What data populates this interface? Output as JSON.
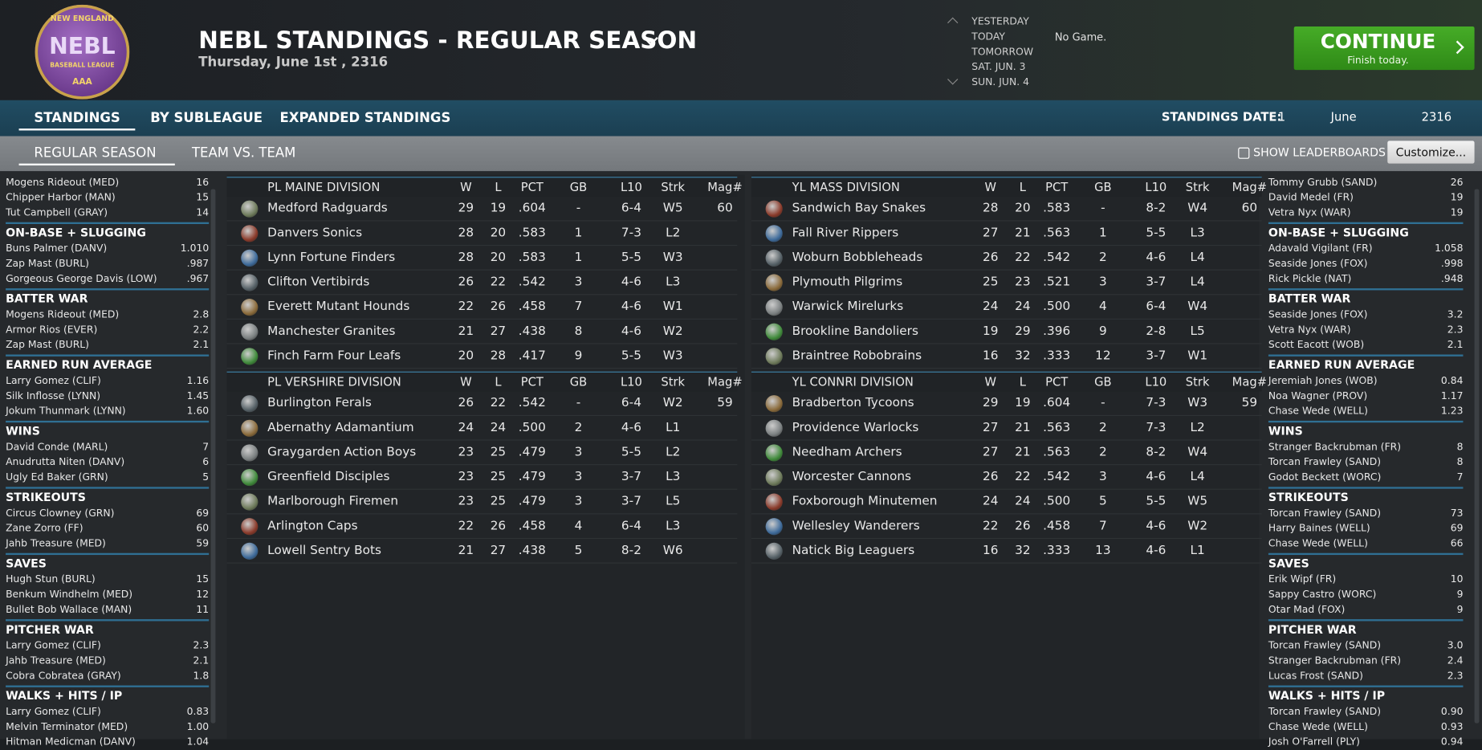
{
  "header": {
    "logo": {
      "top": "NEW ENGLAND",
      "main": "NEBL",
      "sub": "BASEBALL LEAGUE",
      "bottom": "AAA"
    },
    "title": "NEBL STANDINGS - REGULAR SEASON",
    "date": "Thursday, June 1st , 2316",
    "days": [
      "YESTERDAY",
      "TODAY",
      "TOMORROW",
      "SAT. JUN. 3",
      "SUN. JUN. 4"
    ],
    "status": "No Game.",
    "continue": {
      "label": "CONTINUE",
      "note": "Finish today."
    }
  },
  "tabs": [
    "STANDINGS",
    "BY SUBLEAGUE",
    "EXPANDED STANDINGS"
  ],
  "standings_date": {
    "label": "STANDINGS DATE:",
    "day": "1",
    "month": "June",
    "year": "2316"
  },
  "subtabs": [
    "REGULAR SEASON",
    "TEAM VS. TEAM"
  ],
  "show_leaderboards": "SHOW LEADERBOARDS",
  "customize": "Customize...",
  "left_leaders": {
    "partial": [
      [
        "Mogens Rideout (MED)",
        "16"
      ],
      [
        "Chipper Harbor (MAN)",
        "15"
      ],
      [
        "Tut Campbell (GRAY)",
        "14"
      ]
    ],
    "sections": [
      {
        "title": "ON-BASE + SLUGGING",
        "rows": [
          [
            "Buns Palmer (DANV)",
            "1.010"
          ],
          [
            "Zap Mast (BURL)",
            ".987"
          ],
          [
            "Gorgeous George Davis (LOW)",
            ".967"
          ]
        ]
      },
      {
        "title": "BATTER WAR",
        "rows": [
          [
            "Mogens Rideout (MED)",
            "2.8"
          ],
          [
            "Armor Rios (EVER)",
            "2.2"
          ],
          [
            "Zap Mast (BURL)",
            "2.1"
          ]
        ]
      },
      {
        "title": "EARNED RUN AVERAGE",
        "rows": [
          [
            "Larry Gomez (CLIF)",
            "1.16"
          ],
          [
            "Silk Inflosse (LYNN)",
            "1.45"
          ],
          [
            "Jokum Thunmark (LYNN)",
            "1.60"
          ]
        ]
      },
      {
        "title": "WINS",
        "rows": [
          [
            "David Conde (MARL)",
            "7"
          ],
          [
            "Anudrutta Niten (DANV)",
            "6"
          ],
          [
            "Ugly Ed Baker (GRN)",
            "5"
          ]
        ]
      },
      {
        "title": "STRIKEOUTS",
        "rows": [
          [
            "Circus Clowney (GRN)",
            "69"
          ],
          [
            "Zane Zorro (FF)",
            "60"
          ],
          [
            "Jahb Treasure (MED)",
            "59"
          ]
        ]
      },
      {
        "title": "SAVES",
        "rows": [
          [
            "Hugh Stun (BURL)",
            "15"
          ],
          [
            "Benkum Windhelm (MED)",
            "12"
          ],
          [
            "Bullet Bob Wallace (MAN)",
            "11"
          ]
        ]
      },
      {
        "title": "PITCHER WAR",
        "rows": [
          [
            "Larry Gomez (CLIF)",
            "2.3"
          ],
          [
            "Jahb Treasure (MED)",
            "2.1"
          ],
          [
            "Cobra Cobratea (GRAY)",
            "1.8"
          ]
        ]
      },
      {
        "title": "WALKS + HITS / IP",
        "rows": [
          [
            "Larry Gomez (CLIF)",
            "0.83"
          ],
          [
            "Melvin Terminator (MED)",
            "1.00"
          ],
          [
            "Hitman Medicman (DANV)",
            "1.04"
          ]
        ]
      }
    ]
  },
  "right_leaders": {
    "partial": [
      [
        "Tommy Grubb (SAND)",
        "26"
      ],
      [
        "David Medel (FR)",
        "19"
      ],
      [
        "Vetra Nyx (WAR)",
        "19"
      ]
    ],
    "sections": [
      {
        "title": "ON-BASE + SLUGGING",
        "rows": [
          [
            "Adavald Vigilant (FR)",
            "1.058"
          ],
          [
            "Seaside Jones (FOX)",
            ".998"
          ],
          [
            "Rick Pickle (NAT)",
            ".948"
          ]
        ]
      },
      {
        "title": "BATTER WAR",
        "rows": [
          [
            "Seaside Jones (FOX)",
            "3.2"
          ],
          [
            "Vetra Nyx (WAR)",
            "2.3"
          ],
          [
            "Scott Eacott (WOB)",
            "2.1"
          ]
        ]
      },
      {
        "title": "EARNED RUN AVERAGE",
        "rows": [
          [
            "Jeremiah Jones (WOB)",
            "0.84"
          ],
          [
            "Noa Wagner (PROV)",
            "1.17"
          ],
          [
            "Chase Wede (WELL)",
            "1.23"
          ]
        ]
      },
      {
        "title": "WINS",
        "rows": [
          [
            "Stranger Backrubman (FR)",
            "8"
          ],
          [
            "Torcan Frawley (SAND)",
            "8"
          ],
          [
            "Godot Beckett (WORC)",
            "7"
          ]
        ]
      },
      {
        "title": "STRIKEOUTS",
        "rows": [
          [
            "Torcan Frawley (SAND)",
            "73"
          ],
          [
            "Harry Baines (WELL)",
            "69"
          ],
          [
            "Chase Wede (WELL)",
            "66"
          ]
        ]
      },
      {
        "title": "SAVES",
        "rows": [
          [
            "Erik Wipf (FR)",
            "10"
          ],
          [
            "Sappy Castro (WORC)",
            "9"
          ],
          [
            "Otar Mad (FOX)",
            "9"
          ]
        ]
      },
      {
        "title": "PITCHER WAR",
        "rows": [
          [
            "Torcan Frawley (SAND)",
            "3.0"
          ],
          [
            "Stranger Backrubman (FR)",
            "2.4"
          ],
          [
            "Lucas Frost (SAND)",
            "2.3"
          ]
        ]
      },
      {
        "title": "WALKS + HITS / IP",
        "rows": [
          [
            "Torcan Frawley (SAND)",
            "0.90"
          ],
          [
            "Chase Wede (WELL)",
            "0.93"
          ],
          [
            "Josh O'Farrell (PLY)",
            "0.94"
          ]
        ]
      }
    ]
  },
  "standings": [
    [
      {
        "name": "PL MAINE DIVISION",
        "columns": [
          "W",
          "L",
          "PCT",
          "GB",
          "L10",
          "Strk",
          "Mag#"
        ],
        "teams": [
          {
            "name": "Medford Radguards",
            "stats": [
              "29",
              "19",
              ".604",
              "-",
              "6-4",
              "W5",
              "60"
            ]
          },
          {
            "name": "Danvers Sonics",
            "stats": [
              "28",
              "20",
              ".583",
              "1",
              "7-3",
              "L2"
            ]
          },
          {
            "name": "Lynn Fortune Finders",
            "stats": [
              "28",
              "20",
              ".583",
              "1",
              "5-5",
              "W3"
            ]
          },
          {
            "name": "Clifton Vertibirds",
            "stats": [
              "26",
              "22",
              ".542",
              "3",
              "4-6",
              "L3"
            ]
          },
          {
            "name": "Everett Mutant Hounds",
            "stats": [
              "22",
              "26",
              ".458",
              "7",
              "4-6",
              "W1"
            ]
          },
          {
            "name": "Manchester Granites",
            "stats": [
              "21",
              "27",
              ".438",
              "8",
              "4-6",
              "W2"
            ]
          },
          {
            "name": "Finch Farm Four Leafs",
            "stats": [
              "20",
              "28",
              ".417",
              "9",
              "5-5",
              "W3"
            ]
          }
        ]
      },
      {
        "name": "PL VERSHIRE DIVISION",
        "columns": [
          "W",
          "L",
          "PCT",
          "GB",
          "L10",
          "Strk",
          "Mag#"
        ],
        "teams": [
          {
            "name": "Burlington Ferals",
            "stats": [
              "26",
              "22",
              ".542",
              "-",
              "6-4",
              "W2",
              "59"
            ]
          },
          {
            "name": "Abernathy Adamantium",
            "stats": [
              "24",
              "24",
              ".500",
              "2",
              "4-6",
              "L1"
            ]
          },
          {
            "name": "Graygarden Action Boys",
            "stats": [
              "23",
              "25",
              ".479",
              "3",
              "5-5",
              "L2"
            ]
          },
          {
            "name": "Greenfield Disciples",
            "stats": [
              "23",
              "25",
              ".479",
              "3",
              "3-7",
              "L3"
            ]
          },
          {
            "name": "Marlborough Firemen",
            "stats": [
              "23",
              "25",
              ".479",
              "3",
              "3-7",
              "L5"
            ]
          },
          {
            "name": "Arlington Caps",
            "stats": [
              "22",
              "26",
              ".458",
              "4",
              "6-4",
              "L3"
            ]
          },
          {
            "name": "Lowell Sentry Bots",
            "stats": [
              "21",
              "27",
              ".438",
              "5",
              "8-2",
              "W6"
            ]
          }
        ]
      }
    ],
    [
      {
        "name": "YL MASS DIVISION",
        "columns": [
          "W",
          "L",
          "PCT",
          "GB",
          "L10",
          "Strk",
          "Mag#"
        ],
        "teams": [
          {
            "name": "Sandwich Bay Snakes",
            "stats": [
              "28",
              "20",
              ".583",
              "-",
              "8-2",
              "W4",
              "60"
            ]
          },
          {
            "name": "Fall River Rippers",
            "stats": [
              "27",
              "21",
              ".563",
              "1",
              "5-5",
              "L3"
            ]
          },
          {
            "name": "Woburn Bobbleheads",
            "stats": [
              "26",
              "22",
              ".542",
              "2",
              "4-6",
              "L4"
            ]
          },
          {
            "name": "Plymouth Pilgrims",
            "stats": [
              "25",
              "23",
              ".521",
              "3",
              "3-7",
              "L4"
            ]
          },
          {
            "name": "Warwick Mirelurks",
            "stats": [
              "24",
              "24",
              ".500",
              "4",
              "6-4",
              "W4"
            ]
          },
          {
            "name": "Brookline Bandoliers",
            "stats": [
              "19",
              "29",
              ".396",
              "9",
              "2-8",
              "L5"
            ]
          },
          {
            "name": "Braintree Robobrains",
            "stats": [
              "16",
              "32",
              ".333",
              "12",
              "3-7",
              "W1"
            ]
          }
        ]
      },
      {
        "name": "YL CONNRI DIVISION",
        "columns": [
          "W",
          "L",
          "PCT",
          "GB",
          "L10",
          "Strk",
          "Mag#"
        ],
        "teams": [
          {
            "name": "Bradberton Tycoons",
            "stats": [
              "29",
              "19",
              ".604",
              "-",
              "7-3",
              "W3",
              "59"
            ]
          },
          {
            "name": "Providence Warlocks",
            "stats": [
              "27",
              "21",
              ".563",
              "2",
              "7-3",
              "L2"
            ]
          },
          {
            "name": "Needham Archers",
            "stats": [
              "27",
              "21",
              ".563",
              "2",
              "8-2",
              "W4"
            ]
          },
          {
            "name": "Worcester Cannons",
            "stats": [
              "26",
              "22",
              ".542",
              "3",
              "4-6",
              "L4"
            ]
          },
          {
            "name": "Foxborough Minutemen",
            "stats": [
              "24",
              "24",
              ".500",
              "5",
              "5-5",
              "W5"
            ]
          },
          {
            "name": "Wellesley Wanderers",
            "stats": [
              "22",
              "26",
              ".458",
              "7",
              "4-6",
              "W2"
            ]
          },
          {
            "name": "Natick Big Leaguers",
            "stats": [
              "16",
              "32",
              ".333",
              "13",
              "4-6",
              "L1"
            ]
          }
        ]
      }
    ]
  ]
}
